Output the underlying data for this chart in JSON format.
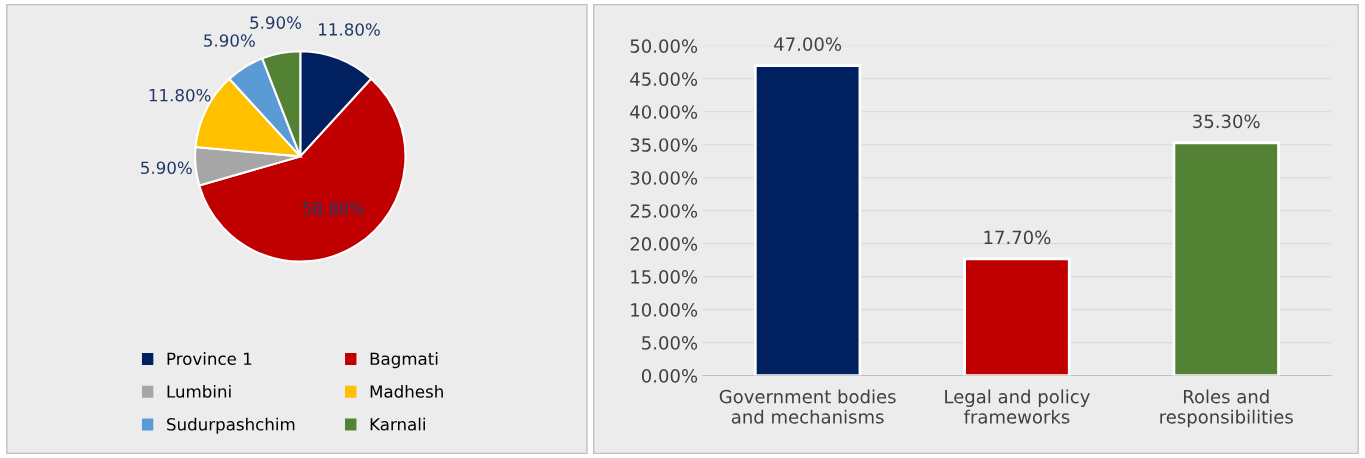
{
  "chart_data": [
    {
      "type": "pie",
      "categories": [
        "Province 1",
        "Bagmati",
        "Lumbini",
        "Madhesh",
        "Sudurpashchim",
        "Karnali"
      ],
      "values": [
        11.8,
        58.8,
        5.9,
        11.8,
        5.9,
        5.9
      ],
      "colors": [
        "#002060",
        "#c00000",
        "#a6a6a6",
        "#ffc000",
        "#5b9bd5",
        "#548235"
      ],
      "value_labels": [
        "11.80%",
        "58.80%",
        "5.90%",
        "11.80%",
        "5.90%",
        "5.90%"
      ],
      "legend": "bottom"
    },
    {
      "type": "bar",
      "categories": [
        "Government bodies\nand mechanisms",
        "Legal and policy\nframeworks",
        "Roles and\nresponsibilities"
      ],
      "values": [
        47.0,
        17.7,
        35.3
      ],
      "colors": [
        "#002060",
        "#c00000",
        "#548235"
      ],
      "value_labels": [
        "47.00%",
        "17.70%",
        "35.30%"
      ],
      "ylim": [
        0,
        50
      ],
      "yticks": [
        {
          "value": 0,
          "label": "0.00%"
        },
        {
          "value": 5,
          "label": "5.00%"
        },
        {
          "value": 10,
          "label": "10.00%"
        },
        {
          "value": 15,
          "label": "15.00%"
        },
        {
          "value": 20,
          "label": "20.00%"
        },
        {
          "value": 25,
          "label": "25.00%"
        },
        {
          "value": 30,
          "label": "30.00%"
        },
        {
          "value": 35,
          "label": "35.00%"
        },
        {
          "value": 40,
          "label": "40.00%"
        },
        {
          "value": 45,
          "label": "45.00%"
        },
        {
          "value": 50,
          "label": "50.00%"
        }
      ],
      "grid": "y"
    }
  ]
}
